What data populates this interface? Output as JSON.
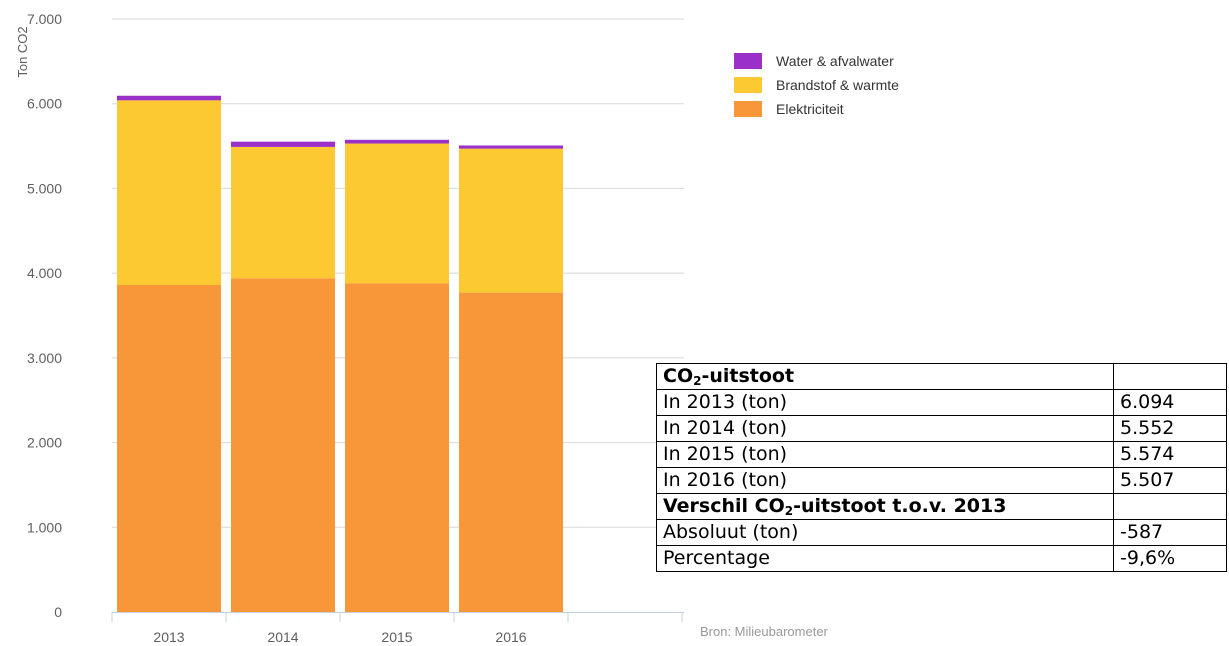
{
  "chart_data": {
    "type": "bar",
    "stacked": true,
    "categories": [
      "2013",
      "2014",
      "2015",
      "2016"
    ],
    "series": [
      {
        "name": "Elektriciteit",
        "color": "#f7973a",
        "values": [
          3860,
          3940,
          3880,
          3770
        ]
      },
      {
        "name": "Brandstof & warmte",
        "color": "#fdc933",
        "values": [
          2180,
          1550,
          1650,
          1700
        ]
      },
      {
        "name": "Water & afvalwater",
        "color": "#9b30c8",
        "values": [
          54,
          62,
          44,
          37
        ]
      }
    ],
    "ylabel": "Ton CO2",
    "ylim": [
      0,
      7000
    ],
    "yticks": [
      "0",
      "1.000",
      "2.000",
      "3.000",
      "4.000",
      "5.000",
      "6.000",
      "7.000"
    ],
    "grid": true,
    "legend_position": "top-right",
    "legend_order": [
      "Water & afvalwater",
      "Brandstof & warmte",
      "Elektriciteit"
    ],
    "footnote": "Bron: Milieubarometer"
  },
  "table": {
    "header1": {
      "co": "CO",
      "sub": "2",
      "rest": "-uitstoot"
    },
    "rows1": [
      {
        "label": "In 2013 (ton)",
        "value": "6.094"
      },
      {
        "label": "In 2014 (ton)",
        "value": "5.552"
      },
      {
        "label": "In 2015 (ton)",
        "value": "5.574"
      },
      {
        "label": "In 2016 (ton)",
        "value": "5.507"
      }
    ],
    "header2": {
      "pre": "Verschil CO",
      "sub": "2",
      "rest": "-uitstoot t.o.v. 2013"
    },
    "rows2": [
      {
        "label": "Absoluut (ton)",
        "value": "-587"
      },
      {
        "label": "Percentage",
        "value": "-9,6%"
      }
    ]
  }
}
